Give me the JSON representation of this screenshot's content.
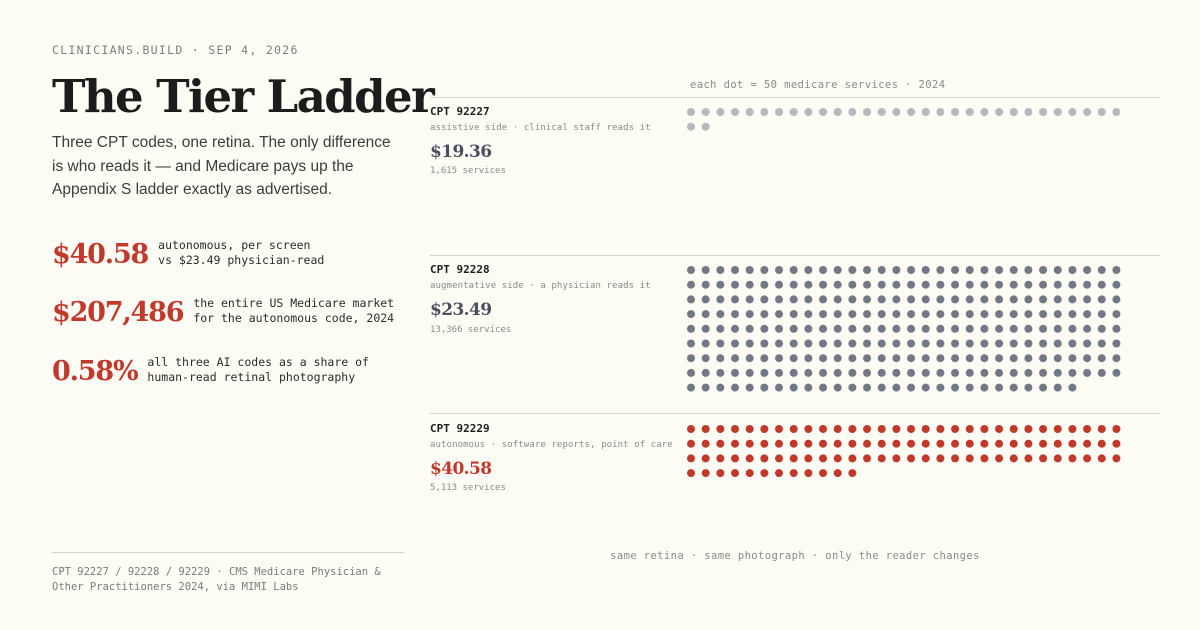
{
  "header": {
    "kicker": "CLINICIANS.BUILD · SEP 4, 2026",
    "title": "The Tier Ladder",
    "subtitle": "Three CPT codes, one retina. The only difference is who reads it — and Medicare pays up the Appendix S ladder exactly as advertised."
  },
  "stats": [
    {
      "value": "$40.58",
      "line1": "autonomous, per screen",
      "line2": "vs $23.49 physician-read"
    },
    {
      "value": "$207,486",
      "line1": "the entire US Medicare market",
      "line2": "for the autonomous code, 2024"
    },
    {
      "value": "0.58%",
      "line1": "all three AI codes as a share of",
      "line2": "human-read retinal photography"
    }
  ],
  "footer": {
    "source": "CPT 92227 / 92228 / 92229 · CMS Medicare Physician & Other Practitioners 2024, via MIMI Labs"
  },
  "chart_data": {
    "type": "dot-matrix",
    "caption": "each dot = 50 medicare services · 2024",
    "units_per_dot": 50,
    "footnote": "same retina · same photograph · only the reader changes",
    "tiers": [
      {
        "code": "CPT 92227",
        "description": "assistive side · clinical staff reads it",
        "price_label": "$19.36",
        "price": 19.36,
        "services_label": "1,615 services",
        "services": 1615,
        "color": "#b5b8bd"
      },
      {
        "code": "CPT 92228",
        "description": "augmentative side · a physician reads it",
        "price_label": "$23.49",
        "price": 23.49,
        "services_label": "13,366 services",
        "services": 13366,
        "color": "#727885"
      },
      {
        "code": "CPT 92229",
        "description": "autonomous · software reports, point of care",
        "price_label": "$40.58",
        "price": 40.58,
        "services_label": "5,113 services",
        "services": 5113,
        "color": "#c0392b"
      }
    ]
  },
  "colors": {
    "accent_red": "#c0392b",
    "slate": "#727885",
    "light_gray": "#b5b8bd",
    "background": "#fdfcf5"
  }
}
